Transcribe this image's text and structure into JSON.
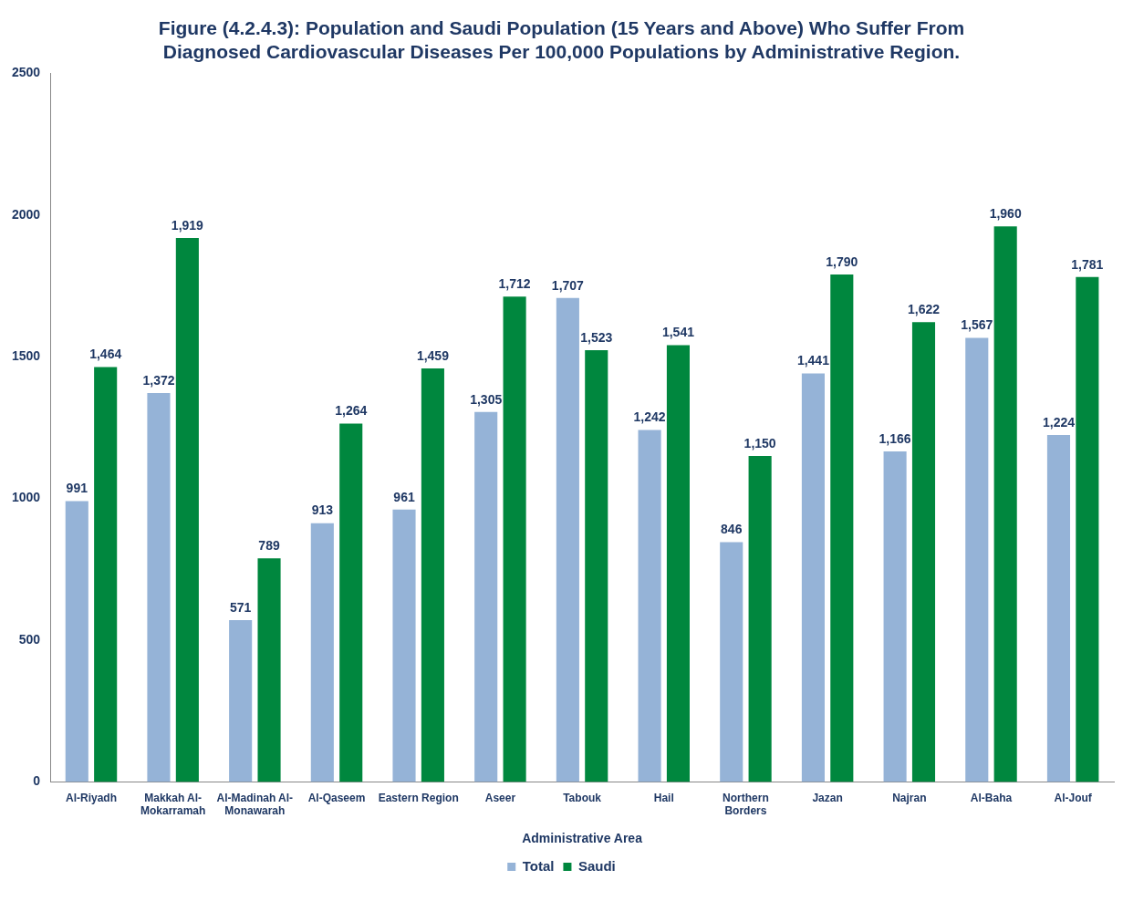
{
  "chart_data": {
    "type": "bar",
    "title": "Figure (4.2.4.3): Population and Saudi Population (15 Years and Above) Who Suffer From Diagnosed Cardiovascular Diseases Per 100,000 Populations by Administrative Region.",
    "xlabel": "Administrative Area",
    "categories": [
      "Al-Riyadh",
      "Makkah Al-Mokarramah",
      "Al-Madinah Al-Monawarah",
      "Al-Qaseem",
      "Eastern Region",
      "Aseer",
      "Tabouk",
      "Hail",
      "Northern Borders",
      "Jazan",
      "Najran",
      "Al-Baha",
      "Al-Jouf"
    ],
    "series": [
      {
        "name": "Total",
        "color": "#95b3d7",
        "values": [
          991,
          1372,
          571,
          913,
          961,
          1305,
          1707,
          1242,
          846,
          1441,
          1166,
          1567,
          1224
        ],
        "value_labels": [
          "991",
          "1,372",
          "571",
          "913",
          "961",
          "1,305",
          "1,707",
          "1,242",
          "846",
          "1,441",
          "1,166",
          "1,567",
          "1,224"
        ]
      },
      {
        "name": "Saudi",
        "color": "#00873e",
        "values": [
          1464,
          1919,
          789,
          1264,
          1459,
          1712,
          1523,
          1541,
          1150,
          1790,
          1622,
          1960,
          1781
        ],
        "value_labels": [
          "1,464",
          "1,919",
          "789",
          "1,264",
          "1,459",
          "1,712",
          "1,523",
          "1,541",
          "1,150",
          "1,790",
          "1,622",
          "1,960",
          "1,781"
        ]
      }
    ],
    "ylim": [
      0,
      2500
    ],
    "yticks": [
      0,
      500,
      1000,
      1500,
      2000,
      2500
    ],
    "grid": false,
    "legend": "bottom"
  }
}
